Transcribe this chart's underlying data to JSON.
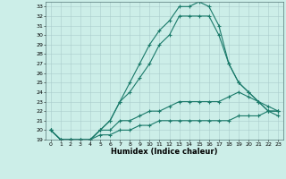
{
  "xlabel": "Humidex (Indice chaleur)",
  "bg_color": "#cceee8",
  "line_color": "#1a7a6a",
  "grid_color": "#aacccc",
  "xlim": [
    -0.5,
    23.5
  ],
  "ylim": [
    19,
    33.5
  ],
  "yticks": [
    19,
    20,
    21,
    22,
    23,
    24,
    25,
    26,
    27,
    28,
    29,
    30,
    31,
    32,
    33
  ],
  "xticks": [
    0,
    1,
    2,
    3,
    4,
    5,
    6,
    7,
    8,
    9,
    10,
    11,
    12,
    13,
    14,
    15,
    16,
    17,
    18,
    19,
    20,
    21,
    22,
    23
  ],
  "series": [
    {
      "x": [
        0,
        1,
        2,
        3,
        4,
        5,
        6,
        7,
        8,
        9,
        10,
        11,
        12,
        13,
        14,
        15,
        16,
        17,
        18,
        19,
        20,
        21,
        22,
        23
      ],
      "y": [
        20,
        19,
        19,
        18.5,
        19,
        20,
        21,
        23,
        25,
        27,
        29,
        30.5,
        31.5,
        33,
        33,
        33.5,
        33,
        31,
        27,
        25,
        24,
        23,
        22,
        21.5
      ]
    },
    {
      "x": [
        0,
        1,
        2,
        3,
        4,
        5,
        6,
        7,
        8,
        9,
        10,
        11,
        12,
        13,
        14,
        15,
        16,
        17,
        18,
        19,
        20,
        21,
        22,
        23
      ],
      "y": [
        20,
        19,
        19,
        19,
        19,
        20,
        21,
        23,
        24,
        25.5,
        27,
        29,
        30,
        32,
        32,
        32,
        32,
        30,
        27,
        25,
        24,
        23,
        22,
        22
      ]
    },
    {
      "x": [
        0,
        1,
        2,
        3,
        4,
        5,
        6,
        7,
        8,
        9,
        10,
        11,
        12,
        13,
        14,
        15,
        16,
        17,
        18,
        19,
        20,
        21,
        22,
        23
      ],
      "y": [
        20,
        19,
        19,
        19,
        19,
        20,
        20,
        21,
        21,
        21.5,
        22,
        22,
        22.5,
        23,
        23,
        23,
        23,
        23,
        23.5,
        24,
        23.5,
        23,
        22.5,
        22
      ]
    },
    {
      "x": [
        0,
        1,
        2,
        3,
        4,
        5,
        6,
        7,
        8,
        9,
        10,
        11,
        12,
        13,
        14,
        15,
        16,
        17,
        18,
        19,
        20,
        21,
        22,
        23
      ],
      "y": [
        20,
        19,
        19,
        19,
        19,
        19.5,
        19.5,
        20,
        20,
        20.5,
        20.5,
        21,
        21,
        21,
        21,
        21,
        21,
        21,
        21,
        21.5,
        21.5,
        21.5,
        22,
        22
      ]
    }
  ]
}
